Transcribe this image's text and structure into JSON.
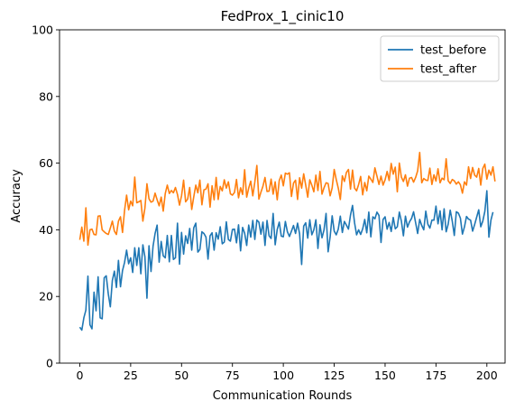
{
  "chart_data": {
    "type": "line",
    "title": "FedProx_1_cinic10",
    "xlabel": "Communication Rounds",
    "ylabel": "Accuracy",
    "xlim": [
      -9.95,
      208.95
    ],
    "ylim": [
      0,
      100
    ],
    "xticks": [
      0,
      25,
      50,
      75,
      100,
      125,
      150,
      175,
      200
    ],
    "yticks": [
      0,
      20,
      40,
      60,
      80,
      100
    ],
    "grid": false,
    "legend_position": "top-right",
    "series": [
      {
        "name": "test_before",
        "color": "#1f77b4",
        "values": [
          10.8,
          9.9,
          13.6,
          15.9,
          26.1,
          11.5,
          10.3,
          21.3,
          15.7,
          25.9,
          13.6,
          13.3,
          25.6,
          26.2,
          20.8,
          16.9,
          24.8,
          27.6,
          22.7,
          30.8,
          22.9,
          27.8,
          30.2,
          33.9,
          29.8,
          31.6,
          27.2,
          34.6,
          29.3,
          34.6,
          26.8,
          35.5,
          31.9,
          19.5,
          35.2,
          27.5,
          35.1,
          38.9,
          41.4,
          30.3,
          36.5,
          32.2,
          31.6,
          38.3,
          30.4,
          38.3,
          31.1,
          31.6,
          42.0,
          29.7,
          39.2,
          32.7,
          38.2,
          35.9,
          40.4,
          33.9,
          40.6,
          42.0,
          33.3,
          34.1,
          39.4,
          38.9,
          37.8,
          31.2,
          38.2,
          39.1,
          33.9,
          39.1,
          37.2,
          40.9,
          35.8,
          36.3,
          42.4,
          37.1,
          36.6,
          40.1,
          40.2,
          36.1,
          41.5,
          33.7,
          40.7,
          39.0,
          35.3,
          41.4,
          37.8,
          42.8,
          37.1,
          42.9,
          42.3,
          38.7,
          42.3,
          35.3,
          42.8,
          38.2,
          37.4,
          44.9,
          35.5,
          40.1,
          42.3,
          38.1,
          37.9,
          42.5,
          39.4,
          38.0,
          39.6,
          41.3,
          38.9,
          42.0,
          38.8,
          29.6,
          41.1,
          42.1,
          37.5,
          43.0,
          38.5,
          40.0,
          43.0,
          34.4,
          41.5,
          37.6,
          40.0,
          44.9,
          33.4,
          37.9,
          44.2,
          39.6,
          38.5,
          40.2,
          44.1,
          39.2,
          42.5,
          41.4,
          40.2,
          44.4,
          47.3,
          42.1,
          38.5,
          40.0,
          38.6,
          40.3,
          43.1,
          39.1,
          45.3,
          37.9,
          43.9,
          43.3,
          45.3,
          44.3,
          36.2,
          43.1,
          43.9,
          40.2,
          42.2,
          39.5,
          43.7,
          40.3,
          40.9,
          45.3,
          42.6,
          38.2,
          44.1,
          40.8,
          42.4,
          43.4,
          45.4,
          42.1,
          38.9,
          43.1,
          41.3,
          40.0,
          45.6,
          41.7,
          40.5,
          42.9,
          42.9,
          47.1,
          41.8,
          45.7,
          40.0,
          46.3,
          39.4,
          41.7,
          45.9,
          42.6,
          38.3,
          45.4,
          45.0,
          43.5,
          38.7,
          40.9,
          44.0,
          43.2,
          42.9,
          39.6,
          41.6,
          43.8,
          46.0,
          40.9,
          42.6,
          45.5,
          51.7,
          37.8,
          42.9,
          45.3
        ]
      },
      {
        "name": "test_after",
        "color": "#ff7f0e",
        "values": [
          37.0,
          40.8,
          36.6,
          46.6,
          35.4,
          40.0,
          40.2,
          38.6,
          38.5,
          44.1,
          44.2,
          40.0,
          39.4,
          38.9,
          38.6,
          40.5,
          42.6,
          39.6,
          38.6,
          42.6,
          43.9,
          39.2,
          45.8,
          50.4,
          46.0,
          48.6,
          47.2,
          55.8,
          48.1,
          48.4,
          48.8,
          42.6,
          46.5,
          53.8,
          49.3,
          48.3,
          48.6,
          51.0,
          49.0,
          47.2,
          49.8,
          45.6,
          50.9,
          53.4,
          50.9,
          51.8,
          51.1,
          52.7,
          50.6,
          47.4,
          50.2,
          54.9,
          48.4,
          49.2,
          52.7,
          46.1,
          49.9,
          53.4,
          51.1,
          54.9,
          47.5,
          52.0,
          52.2,
          53.8,
          46.8,
          53.2,
          49.0,
          55.7,
          49.1,
          53.0,
          51.7,
          55.0,
          52.5,
          54.4,
          50.8,
          50.4,
          51.2,
          55.1,
          49.6,
          52.6,
          50.6,
          58.0,
          49.8,
          52.5,
          54.6,
          50.2,
          54.3,
          59.3,
          49.2,
          51.3,
          53.1,
          55.7,
          51.5,
          51.6,
          55.2,
          50.7,
          54.4,
          49.0,
          54.8,
          56.4,
          53.2,
          57.0,
          56.7,
          57.1,
          50.0,
          54.0,
          54.9,
          49.1,
          55.6,
          52.5,
          56.8,
          53.4,
          49.8,
          55.0,
          53.4,
          51.4,
          56.4,
          51.8,
          57.5,
          50.7,
          52.6,
          54.1,
          53.9,
          50.2,
          52.6,
          58.1,
          55.1,
          52.5,
          49.1,
          56.2,
          54.5,
          57.2,
          58.1,
          52.2,
          57.9,
          52.5,
          51.7,
          53.6,
          56.0,
          50.5,
          54.2,
          51.7,
          56.1,
          55.2,
          54.2,
          58.6,
          56.1,
          53.6,
          56.1,
          53.4,
          55.0,
          57.5,
          54.8,
          59.9,
          56.7,
          58.8,
          51.4,
          60.0,
          55.8,
          54.5,
          56.5,
          53.1,
          55.5,
          55.7,
          54.3,
          55.7,
          57.7,
          63.2,
          54.1,
          55.4,
          54.9,
          54.8,
          58.5,
          53.6,
          56.5,
          54.6,
          58.3,
          54.1,
          55.5,
          55.0,
          61.3,
          54.7,
          53.9,
          55.1,
          54.7,
          53.7,
          54.4,
          53.5,
          51.0,
          54.4,
          53.4,
          58.9,
          55.4,
          58.7,
          56.4,
          55.8,
          58.4,
          53.4,
          58.4,
          59.7,
          55.2,
          57.9,
          56.4,
          58.9,
          54.5
        ]
      }
    ]
  }
}
